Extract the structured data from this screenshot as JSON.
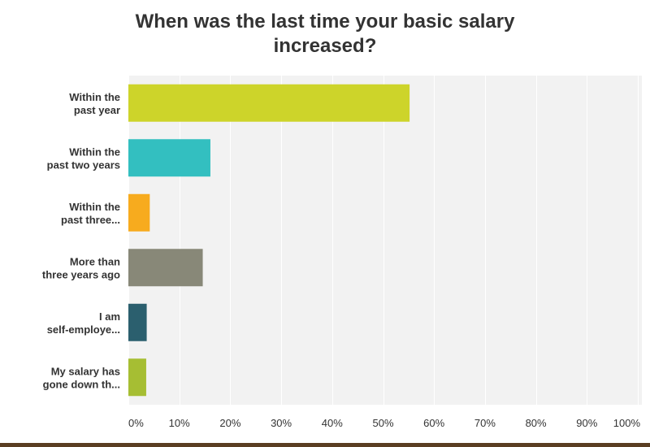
{
  "chart_data": {
    "type": "bar",
    "orientation": "horizontal",
    "title_lines": [
      "When was the last time your basic salary",
      "increased?"
    ],
    "categories": [
      [
        "Within the",
        "past year"
      ],
      [
        "Within the",
        "past two years"
      ],
      [
        "Within the",
        "past three..."
      ],
      [
        "More than",
        "three years ago"
      ],
      [
        "I am",
        "self-employe..."
      ],
      [
        "My salary has",
        "gone down th..."
      ]
    ],
    "values": [
      55.2,
      16.1,
      4.2,
      14.6,
      3.6,
      3.5
    ],
    "colors": [
      "#cdd42a",
      "#33bfc0",
      "#f7ab1e",
      "#888878",
      "#2b5f6e",
      "#a6be33"
    ],
    "xlim": [
      0,
      100
    ],
    "xticks": [
      0,
      10,
      20,
      30,
      40,
      50,
      60,
      70,
      80,
      90,
      100
    ],
    "tick_labels": [
      "0%",
      "10%",
      "20%",
      "30%",
      "40%",
      "50%",
      "60%",
      "70%",
      "80%",
      "90%",
      "100%"
    ],
    "grid": true
  }
}
